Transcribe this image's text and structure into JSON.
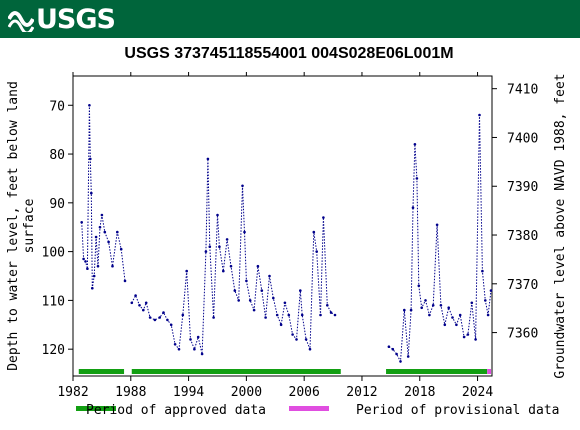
{
  "header": {
    "logo_text": "USGS",
    "background": "#00653b"
  },
  "chart_data": {
    "type": "scatter",
    "title": "USGS 373745118554001 004S028E06L001M",
    "ylabel": "Depth to water level, feet below land surface",
    "ylabel_lines": [
      "Depth to water level, feet below land",
      "surface"
    ],
    "y2label": "Groundwater level above NAVD 1988, feet",
    "xlim": [
      1982,
      2025.5
    ],
    "ylim": [
      125.5,
      64
    ],
    "y2lim": [
      7351.1,
      7412.6
    ],
    "x_ticks": [
      1982,
      1988,
      1994,
      2000,
      2006,
      2012,
      2018,
      2024
    ],
    "y_ticks": [
      70,
      80,
      90,
      100,
      110,
      120
    ],
    "y2_ticks": [
      7360,
      7370,
      7380,
      7390,
      7400,
      7410
    ],
    "grid": false,
    "series": [
      {
        "name": "Depth to water level",
        "color": "#00008b",
        "segments": [
          [
            [
              1982.9,
              94
            ],
            [
              1983.1,
              101.5
            ],
            [
              1983.3,
              102
            ],
            [
              1983.5,
              103.5
            ],
            [
              1983.7,
              70
            ],
            [
              1983.8,
              81
            ],
            [
              1983.9,
              88
            ],
            [
              1984.0,
              107.5
            ],
            [
              1984.2,
              105
            ],
            [
              1984.4,
              97
            ],
            [
              1984.6,
              103
            ],
            [
              1984.8,
              95
            ],
            [
              1985.0,
              92.5
            ],
            [
              1985.3,
              96
            ],
            [
              1985.7,
              98
            ],
            [
              1986.1,
              103
            ],
            [
              1986.6,
              96
            ],
            [
              1987.0,
              99.5
            ],
            [
              1987.4,
              106
            ]
          ],
          [
            [
              1988.1,
              110.5
            ],
            [
              1988.5,
              109
            ],
            [
              1988.9,
              111
            ],
            [
              1989.3,
              112
            ],
            [
              1989.6,
              110.5
            ],
            [
              1990.0,
              113.5
            ],
            [
              1990.5,
              114
            ],
            [
              1991.0,
              113.5
            ],
            [
              1991.4,
              112.5
            ],
            [
              1991.8,
              114
            ],
            [
              1992.2,
              115
            ],
            [
              1992.6,
              119
            ],
            [
              1993.0,
              120
            ],
            [
              1993.4,
              113
            ],
            [
              1993.8,
              104
            ],
            [
              1994.2,
              118
            ],
            [
              1994.6,
              120
            ],
            [
              1995.0,
              117.5
            ],
            [
              1995.4,
              121
            ],
            [
              1995.8,
              100
            ],
            [
              1996.0,
              81
            ],
            [
              1996.2,
              99
            ],
            [
              1996.6,
              113.5
            ],
            [
              1997.0,
              92.5
            ],
            [
              1997.2,
              99
            ],
            [
              1997.6,
              104
            ],
            [
              1998.0,
              97.5
            ],
            [
              1998.4,
              103
            ],
            [
              1998.8,
              108
            ],
            [
              1999.2,
              110
            ],
            [
              1999.6,
              86.5
            ],
            [
              1999.8,
              96
            ],
            [
              2000.0,
              106
            ],
            [
              2000.4,
              110
            ],
            [
              2000.8,
              112
            ],
            [
              2001.2,
              103
            ],
            [
              2001.6,
              108
            ],
            [
              2002.0,
              113.5
            ],
            [
              2002.4,
              105
            ],
            [
              2002.8,
              109.5
            ],
            [
              2003.2,
              113
            ],
            [
              2003.6,
              115
            ],
            [
              2004.0,
              110.5
            ],
            [
              2004.4,
              113
            ],
            [
              2004.8,
              117
            ],
            [
              2005.2,
              118
            ],
            [
              2005.6,
              108
            ],
            [
              2005.8,
              113
            ],
            [
              2006.2,
              118
            ],
            [
              2006.6,
              120
            ],
            [
              2007.0,
              96
            ],
            [
              2007.3,
              100
            ],
            [
              2007.7,
              113
            ],
            [
              2008.0,
              93
            ],
            [
              2008.4,
              111
            ],
            [
              2008.8,
              112.5
            ],
            [
              2009.2,
              113
            ]
          ],
          [
            [
              2014.8,
              119.5
            ],
            [
              2015.2,
              120
            ],
            [
              2015.6,
              121
            ],
            [
              2016.0,
              122.5
            ],
            [
              2016.4,
              112
            ],
            [
              2016.8,
              121.5
            ],
            [
              2017.1,
              112
            ],
            [
              2017.3,
              91
            ],
            [
              2017.5,
              78
            ],
            [
              2017.7,
              85
            ],
            [
              2017.9,
              107
            ],
            [
              2018.2,
              111.5
            ],
            [
              2018.6,
              110
            ],
            [
              2019.0,
              113
            ],
            [
              2019.4,
              111
            ],
            [
              2019.8,
              94.5
            ],
            [
              2020.2,
              111
            ],
            [
              2020.6,
              115
            ],
            [
              2021.0,
              111.5
            ],
            [
              2021.4,
              113.5
            ],
            [
              2021.8,
              115
            ],
            [
              2022.2,
              113
            ],
            [
              2022.6,
              117.5
            ],
            [
              2023.0,
              117
            ],
            [
              2023.4,
              110.5
            ],
            [
              2023.8,
              118
            ],
            [
              2024.2,
              72
            ],
            [
              2024.5,
              104
            ],
            [
              2024.8,
              110
            ],
            [
              2025.1,
              113
            ],
            [
              2025.4,
              108
            ]
          ]
        ]
      }
    ],
    "periods": [
      {
        "name": "Period of approved data",
        "color": "#129f12",
        "ranges": [
          [
            1982.6,
            1987.3
          ],
          [
            1988.1,
            2009.8
          ],
          [
            2014.5,
            2025.0
          ]
        ]
      },
      {
        "name": "Period of provisional data",
        "color": "#e04ee0",
        "ranges": [
          [
            2025.0,
            2025.9
          ]
        ]
      }
    ]
  }
}
